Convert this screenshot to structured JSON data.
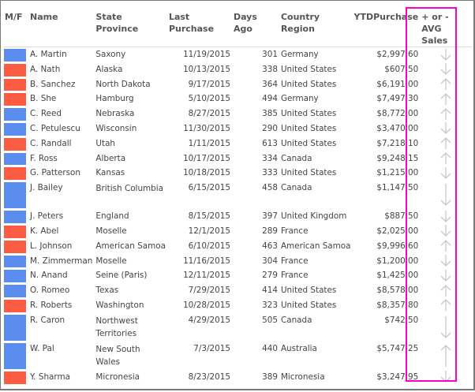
{
  "colors": {
    "male": "#5b8def",
    "female": "#fd5c44",
    "highlight": "#ff00c8",
    "arrow": "#c8c8c8"
  },
  "headers": {
    "mf": "M/F",
    "name": "Name",
    "state": "State Province",
    "last": "Last Purchase",
    "days": "Days Ago",
    "country": "Country Region",
    "ytd": "YTDPurchase",
    "avg": "+ or - AVG Sales"
  },
  "rows": [
    {
      "g": "M",
      "name": "A. Martin",
      "state": "Saxony",
      "last": "11/19/2015",
      "days": "301",
      "country": "Germany",
      "ytd": "$2,997.60",
      "trend": "down-arrow-icon"
    },
    {
      "g": "F",
      "name": "A. Nath",
      "state": "Alaska",
      "last": "10/13/2015",
      "days": "338",
      "country": "United States",
      "ytd": "$607.50",
      "trend": "down-arrow-icon"
    },
    {
      "g": "F",
      "name": "B. Sanchez",
      "state": "North Dakota",
      "last": "9/17/2015",
      "days": "364",
      "country": "United States",
      "ytd": "$6,191.00",
      "trend": "up-arrow-icon"
    },
    {
      "g": "F",
      "name": "B. She",
      "state": "Hamburg",
      "last": "5/10/2015",
      "days": "494",
      "country": "Germany",
      "ytd": "$7,497.30",
      "trend": "up-arrow-icon"
    },
    {
      "g": "M",
      "name": "C. Reed",
      "state": "Nebraska",
      "last": "8/27/2015",
      "days": "385",
      "country": "United States",
      "ytd": "$8,772.00",
      "trend": "up-arrow-icon"
    },
    {
      "g": "M",
      "name": "C. Petulescu",
      "state": "Wisconsin",
      "last": "11/30/2015",
      "days": "290",
      "country": "United States",
      "ytd": "$3,470.00",
      "trend": "down-arrow-icon"
    },
    {
      "g": "F",
      "name": "C. Randall",
      "state": "Utah",
      "last": "1/11/2015",
      "days": "613",
      "country": "United States",
      "ytd": "$7,218.10",
      "trend": "up-arrow-icon"
    },
    {
      "g": "M",
      "name": "F. Ross",
      "state": "Alberta",
      "last": "10/17/2015",
      "days": "334",
      "country": "Canada",
      "ytd": "$9,248.15",
      "trend": "up-arrow-icon"
    },
    {
      "g": "F",
      "name": "G. Patterson",
      "state": "Kansas",
      "last": "10/18/2015",
      "days": "333",
      "country": "United States",
      "ytd": "$1,215.00",
      "trend": "down-arrow-icon"
    },
    {
      "g": "M",
      "name": "J. Bailey",
      "state": "British Columbia",
      "last": "6/15/2015",
      "days": "458",
      "country": "Canada",
      "ytd": "$1,147.50",
      "trend": "down-arrow-icon"
    },
    {
      "g": "M",
      "name": "J. Peters",
      "state": "England",
      "last": "8/15/2015",
      "days": "397",
      "country": "United Kingdom",
      "ytd": "$887.50",
      "trend": "down-arrow-icon"
    },
    {
      "g": "F",
      "name": "K. Abel",
      "state": "Moselle",
      "last": "12/1/2015",
      "days": "289",
      "country": "France",
      "ytd": "$2,025.00",
      "trend": "down-arrow-icon"
    },
    {
      "g": "F",
      "name": "L. Johnson",
      "state": "American Samoa",
      "last": "6/10/2015",
      "days": "463",
      "country": "American Samoa",
      "ytd": "$9,996.60",
      "trend": "up-arrow-icon"
    },
    {
      "g": "M",
      "name": "M. Zimmerman",
      "state": "Moselle",
      "last": "11/16/2015",
      "days": "304",
      "country": "France",
      "ytd": "$1,200.00",
      "trend": "down-arrow-icon"
    },
    {
      "g": "M",
      "name": "N. Anand",
      "state": "Seine (Paris)",
      "last": "12/11/2015",
      "days": "279",
      "country": "France",
      "ytd": "$1,425.00",
      "trend": "down-arrow-icon"
    },
    {
      "g": "M",
      "name": "O. Romeo",
      "state": "Texas",
      "last": "7/29/2015",
      "days": "414",
      "country": "United States",
      "ytd": "$8,578.00",
      "trend": "up-arrow-icon"
    },
    {
      "g": "F",
      "name": "R. Roberts",
      "state": "Washington",
      "last": "10/28/2015",
      "days": "323",
      "country": "United States",
      "ytd": "$8,357.80",
      "trend": "up-arrow-icon"
    },
    {
      "g": "M",
      "name": "R. Caron",
      "state": "Northwest Territories",
      "last": "4/29/2015",
      "days": "505",
      "country": "Canada",
      "ytd": "$742.50",
      "trend": "down-arrow-icon"
    },
    {
      "g": "M",
      "name": "W. Pal",
      "state": "New South Wales",
      "last": "7/3/2015",
      "days": "440",
      "country": "Australia",
      "ytd": "$5,747.25",
      "trend": "up-arrow-icon"
    },
    {
      "g": "F",
      "name": "Y. Sharma",
      "state": "Micronesia",
      "last": "8/23/2015",
      "days": "389",
      "country": "Micronesia",
      "ytd": "$3,247.95",
      "trend": "down-arrow-icon"
    }
  ]
}
